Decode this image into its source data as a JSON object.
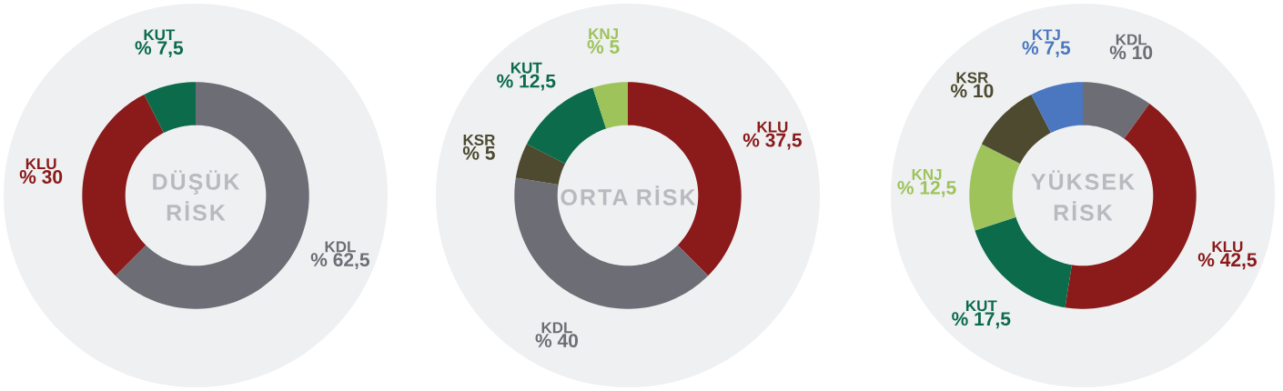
{
  "chart_data": [
    {
      "type": "donut",
      "title": "DÜŞÜK RİSK",
      "categories": [
        "KDL",
        "KLU",
        "KUT"
      ],
      "values": [
        62.5,
        30,
        7.5
      ],
      "value_labels": [
        "% 62,5",
        "% 30",
        "% 7,5"
      ],
      "colors": [
        "#6d6e75",
        "#8b1a1a",
        "#0b6b4a"
      ]
    },
    {
      "type": "donut",
      "title": "ORTA RİSK",
      "categories": [
        "KLU",
        "KDL",
        "KSR",
        "KUT",
        "KNJ"
      ],
      "values": [
        37.5,
        40,
        5,
        12.5,
        5
      ],
      "value_labels": [
        "% 37,5",
        "% 40",
        "% 5",
        "% 12,5",
        "% 5"
      ],
      "colors": [
        "#8b1a1a",
        "#6d6e75",
        "#4d4a30",
        "#0b6b4a",
        "#9dc35a"
      ]
    },
    {
      "type": "donut",
      "title": "YÜKSEK RİSK",
      "categories": [
        "KDL",
        "KLU",
        "KUT",
        "KNJ",
        "KSR",
        "KTJ"
      ],
      "values": [
        10,
        42.5,
        17.5,
        12.5,
        10,
        7.5
      ],
      "value_labels": [
        "% 10",
        "% 42,5",
        "% 17,5",
        "% 12,5",
        "% 10",
        "% 7,5"
      ],
      "colors": [
        "#6d6e75",
        "#8b1a1a",
        "#0b6b4a",
        "#9dc35a",
        "#4d4a30",
        "#4a77c0"
      ]
    }
  ]
}
